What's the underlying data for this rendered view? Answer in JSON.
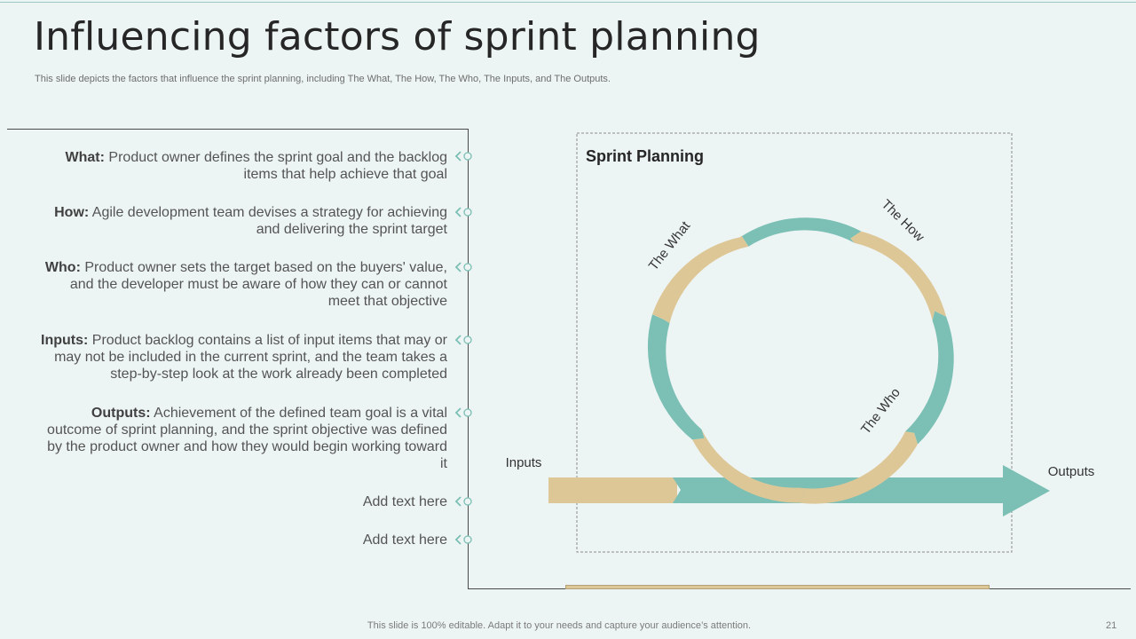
{
  "slide": {
    "title": "Influencing factors of sprint planning",
    "subtitle": "This slide depicts the factors that influence the sprint planning, including The What, The How, The Who, The Inputs, and The Outputs.",
    "footer": "This slide is 100% editable. Adapt it to your needs and capture your audience’s attention.",
    "page_number": "21"
  },
  "factors": [
    {
      "label": "What:",
      "text": "Product owner defines the sprint goal and the backlog items that help achieve that goal"
    },
    {
      "label": "How:",
      "text": "Agile development team devises a strategy for achieving and delivering the sprint target"
    },
    {
      "label": "Who:",
      "text": "Product owner sets the target based on the buyers' value, and the developer must be aware of how they can or cannot meet that objective"
    },
    {
      "label": "Inputs:",
      "text": "Product backlog contains a list of input items that may or may not be included in the current sprint, and the team takes a step-by-step look at the work already been completed"
    },
    {
      "label": "Outputs:",
      "text": "Achievement of the defined team goal is a vital outcome of sprint planning, and the sprint objective was defined by the product owner and how they would begin working toward it"
    },
    {
      "label": "",
      "text": "Add text here"
    },
    {
      "label": "",
      "text": "Add text here"
    }
  ],
  "diagram": {
    "title": "Sprint Planning",
    "label_what": "The What",
    "label_how": "The How",
    "label_who": "The Who",
    "label_inputs": "Inputs",
    "label_outputs": "Outputs"
  },
  "colors": {
    "teal": "#7bbfb5",
    "tan": "#dec797",
    "background": "#edf5f4"
  }
}
